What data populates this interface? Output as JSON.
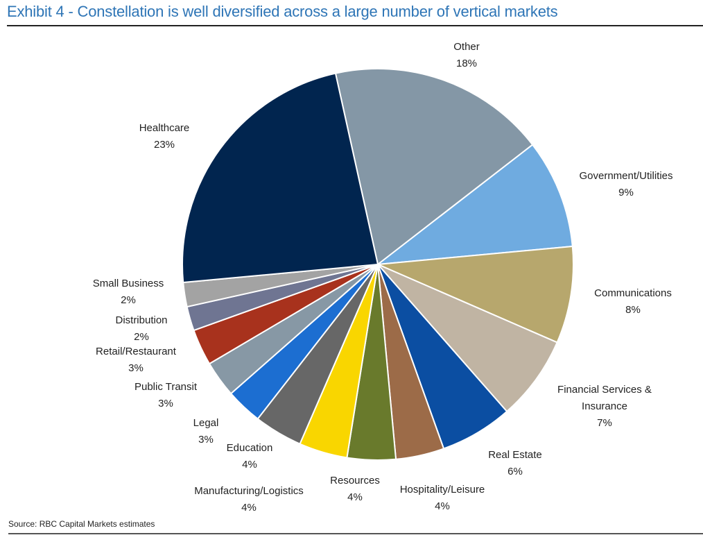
{
  "header": {
    "title": "Exhibit 4 - Constellation is well diversified across a large number of vertical markets"
  },
  "footer": {
    "source": "Source: RBC Capital Markets estimates"
  },
  "chart_data": {
    "type": "pie",
    "title": "Exhibit 4 - Constellation is well diversified across a large number of vertical markets",
    "unit": "%",
    "direction": "clockwise",
    "slices": [
      {
        "label": "Other",
        "value": 18,
        "value_label": "18%",
        "color": "#8497a6"
      },
      {
        "label": "Government/Utilities",
        "value": 9,
        "value_label": "9%",
        "color": "#6fabe0"
      },
      {
        "label": "Communications",
        "value": 8,
        "value_label": "8%",
        "color": "#b7a76d"
      },
      {
        "label": "Financial Services & Insurance",
        "label_lines": [
          "Financial Services &",
          "Insurance"
        ],
        "value": 7,
        "value_label": "7%",
        "color": "#c0b4a3"
      },
      {
        "label": "Real Estate",
        "value": 6,
        "value_label": "6%",
        "color": "#0b4ea2"
      },
      {
        "label": "Hospitality/Leisure",
        "value": 4,
        "value_label": "4%",
        "color": "#9c6b48"
      },
      {
        "label": "Resources",
        "value": 4,
        "value_label": "4%",
        "color": "#697a2c"
      },
      {
        "label": "Manufacturing/Logistics",
        "value": 4,
        "value_label": "4%",
        "color": "#f9d600"
      },
      {
        "label": "Education",
        "value": 4,
        "value_label": "4%",
        "color": "#676767"
      },
      {
        "label": "Legal",
        "value": 3,
        "value_label": "3%",
        "color": "#1c6ed1"
      },
      {
        "label": "Public Transit",
        "value": 3,
        "value_label": "3%",
        "color": "#8798a5"
      },
      {
        "label": "Retail/Restaurant",
        "value": 3,
        "value_label": "3%",
        "color": "#a8321d"
      },
      {
        "label": "Distribution",
        "value": 2,
        "value_label": "2%",
        "color": "#6f7592"
      },
      {
        "label": "Small Business",
        "value": 2,
        "value_label": "2%",
        "color": "#a3a3a3"
      },
      {
        "label": "Healthcare",
        "value": 23,
        "value_label": "23%",
        "color": "#01254f"
      }
    ]
  }
}
